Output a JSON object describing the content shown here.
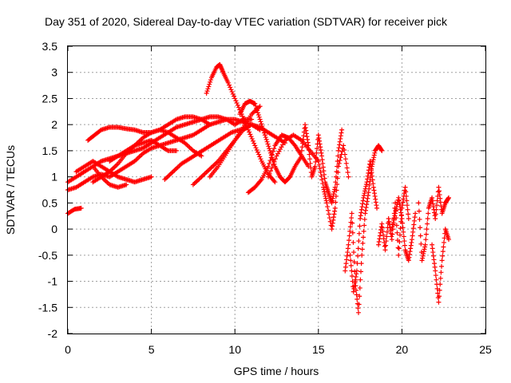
{
  "chart_data": {
    "type": "scatter",
    "title": "Day 351 of 2020, Sidereal Day-to-day VTEC variation (SDTVAR) for receiver pick",
    "xlabel": "GPS time / hours",
    "ylabel": "SDTVAR / TECUs",
    "xlim": [
      0,
      25
    ],
    "ylim": [
      -2,
      3.5
    ],
    "x_ticks": [
      "0",
      "5",
      "10",
      "15",
      "20",
      "25"
    ],
    "y_ticks": [
      "-2",
      "-1.5",
      "-1",
      "-0.5",
      "0",
      "0.5",
      "1",
      "1.5",
      "2",
      "2.5",
      "3",
      "3.5"
    ],
    "grid": true,
    "marker": "+",
    "color": "#ff0000",
    "series": [
      {
        "x": [
          0.0,
          0.4,
          0.8
        ],
        "y": [
          0.3,
          0.38,
          0.4
        ]
      },
      {
        "x": [
          0.0,
          0.5,
          1.0,
          1.5,
          2.0,
          2.5,
          3.0,
          3.5,
          4.0,
          4.5,
          5.0,
          5.5,
          6.0,
          6.5,
          7.0,
          7.5,
          8.0,
          8.5,
          9.0,
          9.5,
          10.0,
          10.5,
          11.0
        ],
        "y": [
          0.9,
          1.0,
          1.1,
          1.2,
          1.3,
          1.35,
          1.4,
          1.45,
          1.5,
          1.55,
          1.65,
          1.75,
          1.85,
          1.95,
          2.0,
          2.05,
          2.1,
          2.15,
          2.15,
          2.1,
          2.0,
          2.1,
          2.1
        ]
      },
      {
        "x": [
          0.0,
          0.5,
          1.0,
          1.5,
          2.0,
          2.5,
          3.0,
          3.5,
          4.0,
          4.5,
          5.0,
          5.5,
          6.0,
          6.5,
          7.0,
          7.5,
          8.0,
          8.5,
          9.0,
          9.5,
          10.0,
          10.5,
          11.0,
          11.5,
          12.0,
          12.5,
          13.0
        ],
        "y": [
          0.75,
          0.8,
          0.9,
          1.0,
          1.05,
          1.0,
          1.1,
          1.2,
          1.3,
          1.45,
          1.55,
          1.6,
          1.65,
          1.7,
          1.75,
          1.8,
          1.9,
          2.0,
          2.05,
          2.1,
          2.1,
          2.05,
          2.0,
          1.95,
          1.85,
          1.75,
          1.65
        ]
      },
      {
        "x": [
          1.2,
          1.6,
          2.0,
          2.5,
          3.0,
          3.5,
          4.0,
          4.5,
          5.0,
          5.5,
          6.0,
          6.5,
          7.0,
          7.5,
          8.0,
          8.5
        ],
        "y": [
          1.7,
          1.8,
          1.9,
          1.95,
          1.95,
          1.92,
          1.9,
          1.85,
          1.85,
          1.9,
          2.0,
          2.1,
          2.15,
          2.15,
          2.1,
          2.0
        ]
      },
      {
        "x": [
          0.5,
          1.0,
          1.5,
          2.0,
          2.5,
          3.0,
          3.5,
          4.0,
          4.5,
          5.0
        ],
        "y": [
          1.1,
          1.2,
          1.3,
          1.2,
          1.1,
          1.0,
          0.95,
          0.9,
          0.95,
          1.0
        ]
      },
      {
        "x": [
          1.5,
          2.0,
          2.5,
          3.0,
          3.5
        ],
        "y": [
          1.2,
          1.0,
          0.85,
          0.8,
          0.85
        ]
      },
      {
        "x": [
          1.5,
          2.0,
          2.5,
          3.0,
          3.5,
          4.0,
          4.5,
          5.0,
          5.5,
          6.0,
          6.5,
          7.0,
          7.5,
          8.0
        ],
        "y": [
          0.9,
          1.0,
          1.1,
          1.25,
          1.45,
          1.6,
          1.75,
          1.85,
          1.9,
          1.85,
          1.75,
          1.65,
          1.5,
          1.4
        ]
      },
      {
        "x": [
          2.5,
          3.0,
          3.5,
          4.0,
          4.5,
          5.0,
          5.5,
          6.0,
          6.5
        ],
        "y": [
          1.3,
          1.4,
          1.5,
          1.6,
          1.65,
          1.7,
          1.6,
          1.5,
          1.5
        ]
      },
      {
        "x": [
          5.8,
          6.3,
          6.8,
          7.3,
          7.8,
          8.3,
          8.8,
          9.3,
          9.8,
          10.3,
          10.8
        ],
        "y": [
          0.95,
          1.1,
          1.25,
          1.35,
          1.45,
          1.55,
          1.65,
          1.75,
          1.85,
          1.9,
          1.95
        ]
      },
      {
        "x": [
          7.5,
          8.0,
          8.5,
          9.0,
          9.5,
          10.0,
          10.5,
          11.0,
          11.5
        ],
        "y": [
          0.85,
          1.0,
          1.15,
          1.3,
          1.5,
          1.7,
          1.9,
          2.0,
          1.9
        ]
      },
      {
        "x": [
          8.5,
          9.0,
          9.5,
          10.0,
          10.5,
          11.0,
          11.5
        ],
        "y": [
          1.0,
          1.2,
          1.45,
          1.7,
          1.95,
          2.2,
          2.35
        ]
      },
      {
        "x": [
          8.3,
          8.6,
          8.9,
          9.1,
          9.3,
          9.6,
          10.0,
          10.4,
          10.8,
          11.2,
          11.6,
          12.0,
          12.4
        ],
        "y": [
          2.6,
          2.9,
          3.1,
          3.15,
          3.0,
          2.8,
          2.5,
          2.2,
          1.9,
          1.6,
          1.3,
          1.05,
          0.9
        ]
      },
      {
        "x": [
          10.3,
          10.6,
          10.9,
          11.2,
          11.5,
          11.8,
          12.1,
          12.4,
          12.7,
          13.0,
          13.3,
          13.6,
          14.0
        ],
        "y": [
          2.2,
          2.4,
          2.45,
          2.4,
          2.1,
          1.8,
          1.5,
          1.2,
          1.0,
          0.9,
          1.0,
          1.2,
          1.4
        ]
      },
      {
        "x": [
          10.8,
          11.2,
          11.6,
          12.0,
          12.4,
          12.8,
          13.2,
          13.6,
          14.0,
          14.4
        ],
        "y": [
          0.7,
          0.8,
          0.95,
          1.2,
          1.6,
          1.8,
          1.75,
          1.6,
          1.4,
          1.2
        ]
      },
      {
        "x": [
          12.0,
          12.5,
          13.0,
          13.5,
          14.0,
          14.5,
          15.0
        ],
        "y": [
          1.0,
          1.4,
          1.7,
          1.8,
          1.7,
          1.5,
          1.3
        ]
      },
      {
        "x": [
          14.0,
          14.2,
          14.4,
          14.6,
          14.8,
          15.0,
          15.2,
          15.4,
          15.6,
          15.8,
          16.0,
          16.2,
          16.4
        ],
        "y": [
          1.5,
          2.0,
          1.6,
          1.0,
          1.2,
          1.8,
          1.4,
          0.9,
          0.7,
          0.5,
          0.8,
          1.5,
          1.9
        ]
      },
      {
        "x": [
          15.0,
          15.3,
          15.5,
          15.8,
          16.0,
          16.2,
          16.5,
          16.8
        ],
        "y": [
          1.3,
          0.8,
          0.5,
          0.0,
          0.4,
          1.2,
          1.6,
          1.0
        ]
      },
      {
        "x": [
          16.6,
          16.8,
          17.0,
          17.2,
          17.4,
          17.6,
          17.8,
          18.0,
          18.2,
          18.4,
          18.6,
          18.8
        ],
        "y": [
          -0.8,
          -0.3,
          0.3,
          -1.0,
          -1.6,
          -0.5,
          0.3,
          0.7,
          1.2,
          1.5,
          1.6,
          1.5
        ]
      },
      {
        "x": [
          16.9,
          17.1,
          17.3,
          17.5,
          17.7,
          17.9,
          18.1,
          18.3,
          18.5
        ],
        "y": [
          -0.5,
          -1.2,
          -0.8,
          0.2,
          0.6,
          0.9,
          1.3,
          0.8,
          0.4
        ]
      },
      {
        "x": [
          18.6,
          18.8,
          19.0,
          19.2,
          19.4,
          19.6,
          19.8,
          20.0,
          20.2,
          20.4
        ],
        "y": [
          -0.3,
          0.1,
          -0.4,
          0.2,
          -0.2,
          0.5,
          -0.5,
          0.4,
          0.8,
          0.2
        ]
      },
      {
        "x": [
          19.4,
          19.6,
          19.8,
          20.0,
          20.2,
          20.4,
          20.6,
          20.8
        ],
        "y": [
          0.0,
          0.3,
          0.6,
          0.2,
          -0.4,
          -0.6,
          -0.2,
          0.3
        ]
      },
      {
        "x": [
          21.0,
          21.2,
          21.4,
          21.6,
          21.8,
          22.0,
          22.2,
          22.4,
          22.6,
          22.8
        ],
        "y": [
          0.5,
          -0.6,
          -0.3,
          0.4,
          0.6,
          0.2,
          0.8,
          0.3,
          0.5,
          0.6
        ]
      },
      {
        "x": [
          21.8,
          22.0,
          22.2,
          22.4,
          22.6,
          22.8
        ],
        "y": [
          -0.3,
          -0.8,
          -1.4,
          -0.6,
          0.0,
          -0.2
        ]
      }
    ]
  }
}
